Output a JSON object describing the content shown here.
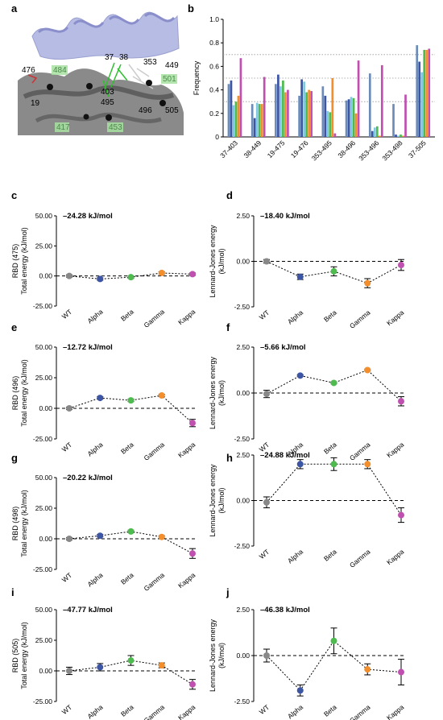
{
  "panel_letters": [
    "a",
    "b",
    "c",
    "d",
    "e",
    "f",
    "g",
    "h",
    "i",
    "j"
  ],
  "molecule": {
    "residue_labels": [
      "476",
      "19",
      "484",
      "37",
      "38",
      "353",
      "449",
      "403",
      "495",
      "501",
      "496",
      "505",
      "417",
      "453"
    ],
    "colors": {
      "helix": "#b7bce4",
      "body": "#7a7a7a",
      "highlight": "#a8e0a0",
      "stick_green": "#2fbf2f"
    }
  },
  "colors": {
    "WT": "#888888",
    "Alpha": "#3c55a5",
    "Beta": "#4dbb4d",
    "Gamma": "#f28e2b",
    "Kappa": "#c050b0",
    "WT_bar": "#7da7c9"
  },
  "chart_data": [
    {
      "id": "b",
      "type": "bar",
      "ylabel": "Frequency",
      "ylim": [
        0,
        1.0
      ],
      "yticks": [
        "0",
        "0.2",
        "0.4",
        "0.6",
        "0.8",
        "1.0"
      ],
      "ref_lines": [
        0.3,
        0.5,
        0.7
      ],
      "categories": [
        "37-403",
        "38-449",
        "19-475",
        "19-476",
        "353-495",
        "38-496",
        "353-496",
        "353-498",
        "37-505"
      ],
      "series": [
        {
          "values": [
            0.45,
            0.28,
            0.45,
            0.35,
            0.43,
            0.31,
            0.54,
            0.28,
            0.78
          ]
        },
        {
          "values": [
            0.48,
            0.16,
            0.53,
            0.49,
            0.35,
            0.32,
            0.05,
            0.02,
            0.64
          ]
        },
        {
          "values": [
            0.27,
            0.29,
            0.43,
            0.47,
            0.22,
            0.34,
            0.08,
            0.01,
            0.55
          ]
        },
        {
          "values": [
            0.3,
            0.28,
            0.48,
            0.38,
            0.21,
            0.33,
            0.09,
            0.02,
            0.74
          ]
        },
        {
          "values": [
            0.35,
            0.28,
            0.38,
            0.4,
            0.5,
            0.2,
            0.01,
            0.01,
            0.74
          ]
        },
        {
          "values": [
            0.67,
            0.51,
            0.4,
            0.39,
            0.03,
            0.65,
            0.61,
            0.36,
            0.75
          ]
        }
      ]
    },
    {
      "id": "c",
      "type": "scatter",
      "ylabel": [
        "RBD (475)",
        "Total energy (kJ/mol)"
      ],
      "yticks": [
        "50.00",
        "25.00",
        "0.00",
        "-25.00"
      ],
      "ylim": [
        -25,
        50
      ],
      "annotation": "–24.28 kJ/mol",
      "categories": [
        "WT",
        "Alpha",
        "Beta",
        "Gamma",
        "Kappa"
      ],
      "values": [
        0,
        -2.5,
        -1,
        2.5,
        1.5
      ],
      "errors": [
        1,
        1,
        1,
        1,
        1
      ]
    },
    {
      "id": "d",
      "type": "scatter",
      "ylabel": [
        "Lennard-Jones energy",
        "(kJ/mol)"
      ],
      "yticks": [
        "2.50",
        "0.00",
        "-2.50"
      ],
      "ylim": [
        -2.5,
        2.5
      ],
      "annotation": "–18.40 kJ/mol",
      "categories": [
        "WT",
        "Alpha",
        "Beta",
        "Gamma",
        "Kappa"
      ],
      "values": [
        0,
        -0.85,
        -0.55,
        -1.2,
        -0.2
      ],
      "errors": [
        0.1,
        0.15,
        0.25,
        0.25,
        0.3
      ]
    },
    {
      "id": "e",
      "type": "scatter",
      "ylabel": [
        "RBD (496)",
        "Total energy (kJ/mol)"
      ],
      "yticks": [
        "50.00",
        "25.00",
        "0.00",
        "-25.00"
      ],
      "ylim": [
        -25,
        50
      ],
      "annotation": "–12.72 kJ/mol",
      "categories": [
        "WT",
        "Alpha",
        "Beta",
        "Gamma",
        "Kappa"
      ],
      "values": [
        0,
        8.5,
        6.5,
        10.5,
        -12
      ],
      "errors": [
        1,
        1,
        1,
        1,
        3
      ]
    },
    {
      "id": "f",
      "type": "scatter",
      "ylabel": [
        "Lennard-Jones energy",
        "(kJ/mol)"
      ],
      "yticks": [
        "2.50",
        "0.00",
        "-2.50"
      ],
      "ylim": [
        -2.5,
        2.5
      ],
      "annotation": "–5.66 kJ/mol",
      "categories": [
        "WT",
        "Alpha",
        "Beta",
        "Gamma",
        "Kappa"
      ],
      "values": [
        -0.05,
        0.95,
        0.55,
        1.25,
        -0.45
      ],
      "errors": [
        0.2,
        0.05,
        0.05,
        0.05,
        0.25
      ]
    },
    {
      "id": "g",
      "type": "scatter",
      "ylabel": [
        "RBD (498)",
        "Total energy (kJ/mol)"
      ],
      "yticks": [
        "50.00",
        "25.00",
        "0.00",
        "-25.00"
      ],
      "ylim": [
        -25,
        50
      ],
      "annotation": "–20.22 kJ/mol",
      "categories": [
        "WT",
        "Alpha",
        "Beta",
        "Gamma",
        "Kappa"
      ],
      "values": [
        0,
        2.5,
        6,
        1.5,
        -12
      ],
      "errors": [
        1,
        1,
        1,
        1,
        4
      ]
    },
    {
      "id": "h",
      "type": "scatter",
      "ylabel": [
        "Lennard-Jones energy",
        "(kJ/mol)"
      ],
      "yticks": [
        "2.50",
        "0.00",
        "-2.50"
      ],
      "ylim": [
        -2.5,
        2.5
      ],
      "annotation": "–24.88 kJ/mol",
      "categories": [
        "WT",
        "Alpha",
        "Beta",
        "Gamma",
        "Kappa"
      ],
      "values": [
        -0.1,
        2.0,
        2.0,
        2.0,
        -0.8
      ],
      "errors": [
        0.3,
        0.25,
        0.35,
        0.25,
        0.4
      ]
    },
    {
      "id": "i",
      "type": "scatter",
      "ylabel": [
        "RBD (505)",
        "Total energy (kJ/mol)"
      ],
      "yticks": [
        "50.00",
        "25.00",
        "0.00",
        "-25.00"
      ],
      "ylim": [
        -25,
        50
      ],
      "annotation": "–47.77 kJ/mol",
      "categories": [
        "WT",
        "Alpha",
        "Beta",
        "Gamma",
        "Kappa"
      ],
      "values": [
        0,
        3,
        8.5,
        4.5,
        -11
      ],
      "errors": [
        3,
        3,
        4,
        2,
        4
      ]
    },
    {
      "id": "j",
      "type": "scatter",
      "ylabel": [
        "Lennard-Jones energy",
        "(kJ/mol)"
      ],
      "yticks": [
        "2.50",
        "0.00",
        "-2.50"
      ],
      "ylim": [
        -2.5,
        2.5
      ],
      "annotation": "–46.38 kJ/mol",
      "categories": [
        "WT",
        "Alpha",
        "Beta",
        "Gamma",
        "Kappa"
      ],
      "values": [
        0,
        -1.9,
        0.8,
        -0.75,
        -0.9
      ],
      "errors": [
        0.35,
        0.3,
        0.7,
        0.3,
        0.7
      ]
    }
  ]
}
